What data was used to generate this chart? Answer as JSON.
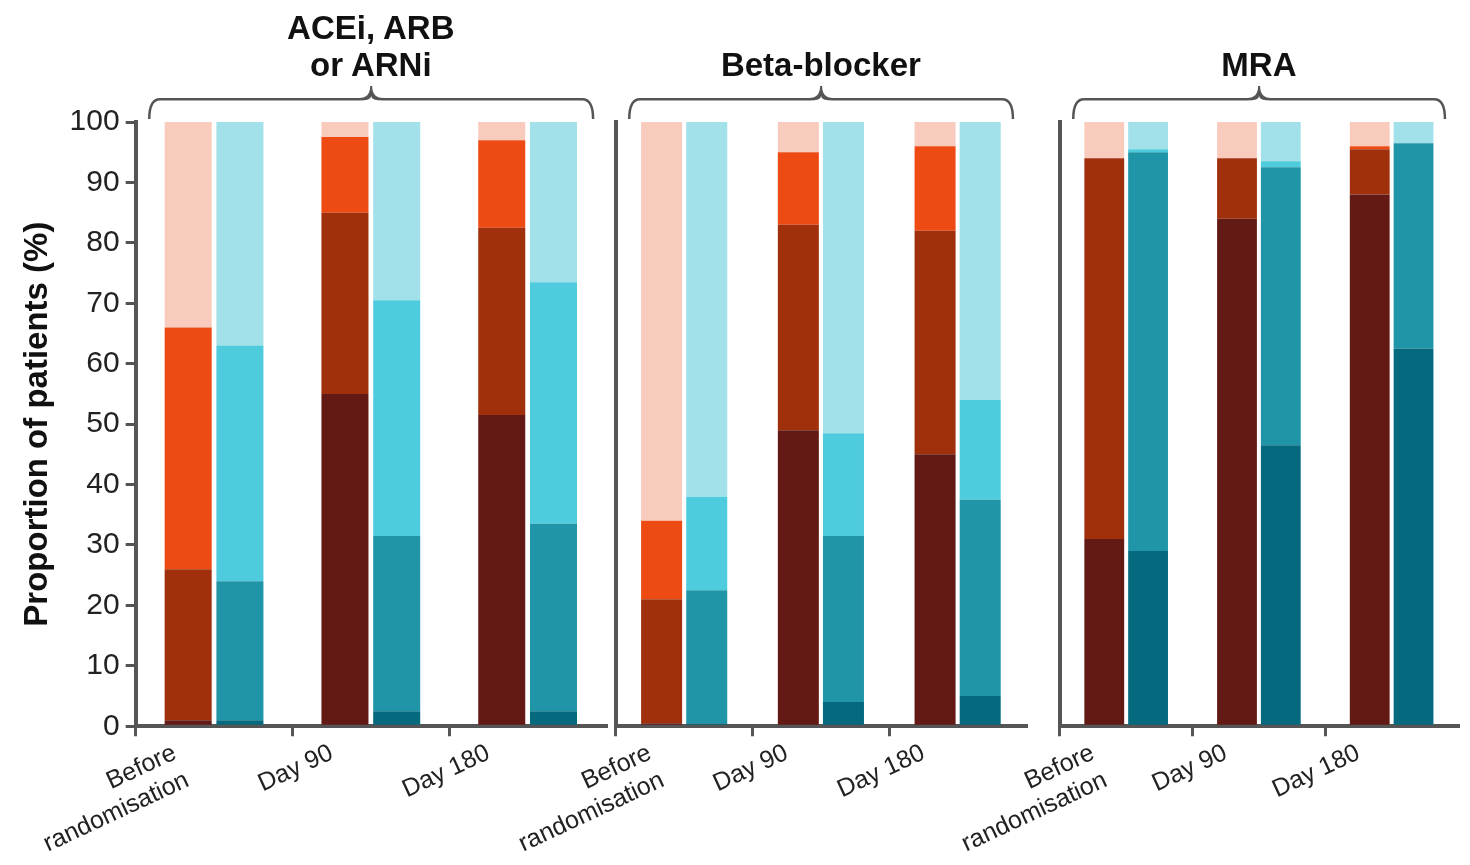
{
  "chart_data": [
    {
      "type": "bar",
      "title": "ACEi, ARB or ARNi",
      "ylabel": "Proportion of patients (%)",
      "stacked": true,
      "categories": [
        "Before randomisation",
        null,
        "Day 90",
        null,
        "Day 180",
        null
      ],
      "ylim": [
        0,
        100
      ],
      "yticks": [
        0,
        10,
        20,
        30,
        40,
        50,
        60,
        70,
        80,
        90,
        100
      ],
      "series": [
        {
          "color": "#641a14",
          "values": [
            1,
            null,
            55,
            null,
            51.5,
            null
          ]
        },
        {
          "color": "#a0300c",
          "values": [
            25,
            null,
            30,
            null,
            31,
            null
          ]
        },
        {
          "color": "#ee4a14",
          "values": [
            40,
            null,
            12.5,
            null,
            14.5,
            null
          ]
        },
        {
          "color": "#f9cbbd",
          "values": [
            34,
            null,
            2.5,
            null,
            3,
            null
          ]
        },
        {
          "color": "#056a7e",
          "values": [
            null,
            1,
            null,
            2.5,
            null,
            2.5
          ]
        },
        {
          "color": "#2095a8",
          "values": [
            null,
            23,
            null,
            29,
            null,
            31
          ]
        },
        {
          "color": "#4ecbdc",
          "values": [
            null,
            39,
            null,
            39,
            null,
            40
          ]
        },
        {
          "color": "#a2e0ea",
          "values": [
            null,
            37,
            null,
            29.5,
            null,
            26.5
          ]
        }
      ]
    },
    {
      "type": "bar",
      "title": "Beta-blocker",
      "stacked": true,
      "tick_labels": "x",
      "categories": [
        "Before randomisation",
        null,
        "Day 90",
        null,
        "Day 180",
        null
      ],
      "ylim": [
        0,
        100
      ],
      "yticks": [
        0,
        10,
        20,
        30,
        40,
        50,
        60,
        70,
        80,
        90,
        100
      ],
      "series": [
        {
          "color": "#641a14",
          "values": [
            0.5,
            null,
            49,
            null,
            45,
            null
          ]
        },
        {
          "color": "#a0300c",
          "values": [
            20.5,
            null,
            34,
            null,
            37,
            null
          ]
        },
        {
          "color": "#ee4a14",
          "values": [
            13,
            null,
            12,
            null,
            14,
            null
          ]
        },
        {
          "color": "#f9cbbd",
          "values": [
            66,
            null,
            5,
            null,
            4,
            null
          ]
        },
        {
          "color": "#056a7e",
          "values": [
            null,
            0.5,
            null,
            4,
            null,
            5
          ]
        },
        {
          "color": "#2095a8",
          "values": [
            null,
            22,
            null,
            27.5,
            null,
            32.5
          ]
        },
        {
          "color": "#4ecbdc",
          "values": [
            null,
            15.5,
            null,
            17,
            null,
            16.5
          ]
        },
        {
          "color": "#a2e0ea",
          "values": [
            null,
            62,
            null,
            51.5,
            null,
            46
          ]
        }
      ]
    },
    {
      "type": "bar",
      "title": "MRA",
      "stacked": true,
      "tick_labels": "x",
      "categories": [
        "Before randomisation",
        null,
        "Day 90",
        null,
        "Day 180",
        null
      ],
      "ylim": [
        0,
        100
      ],
      "yticks": [
        0,
        10,
        20,
        30,
        40,
        50,
        60,
        70,
        80,
        90,
        100
      ],
      "series": [
        {
          "color": "#641a14",
          "values": [
            31,
            null,
            84,
            null,
            88,
            null
          ]
        },
        {
          "color": "#a0300c",
          "values": [
            63,
            null,
            10,
            null,
            7.5,
            null
          ]
        },
        {
          "color": "#ee4a14",
          "values": [
            null,
            null,
            null,
            null,
            0.5,
            null
          ]
        },
        {
          "color": "#f9cbbd",
          "values": [
            6,
            null,
            6,
            null,
            4,
            null
          ]
        },
        {
          "color": "#056a7e",
          "values": [
            null,
            29,
            null,
            46.5,
            null,
            62.5
          ]
        },
        {
          "color": "#2095a8",
          "values": [
            null,
            66,
            null,
            46,
            null,
            34
          ]
        },
        {
          "color": "#4ecbdc",
          "values": [
            null,
            0.5,
            null,
            1,
            null,
            null
          ]
        },
        {
          "color": "#a2e0ea",
          "values": [
            null,
            4.5,
            null,
            6.5,
            null,
            3.5
          ]
        }
      ]
    }
  ]
}
